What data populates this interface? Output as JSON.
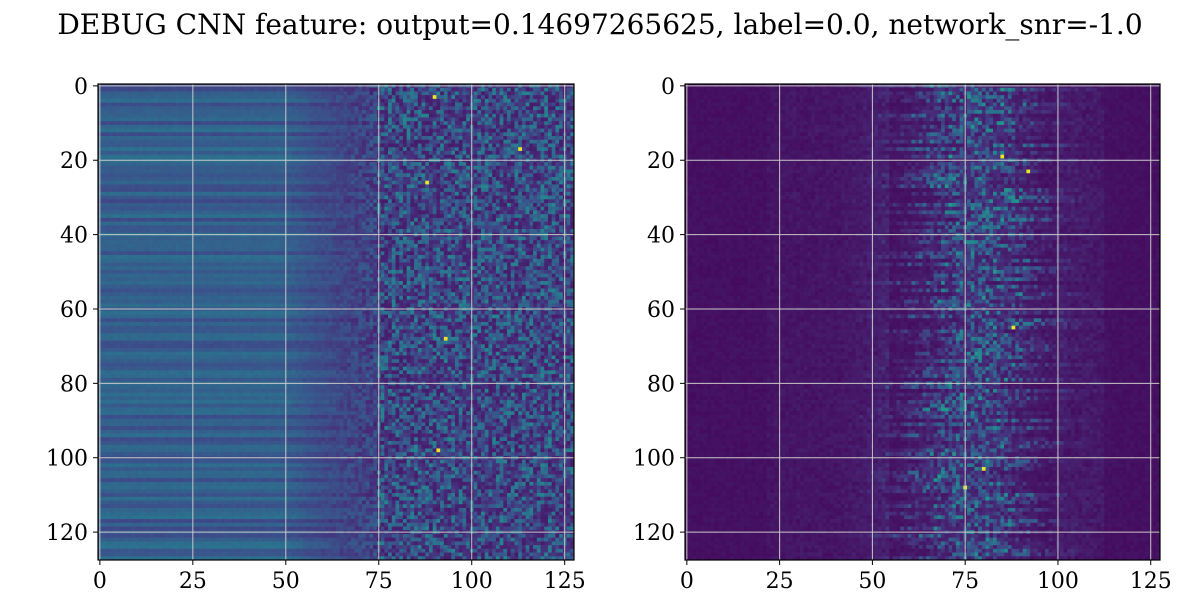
{
  "figure": {
    "title": "DEBUG CNN feature: output=0.14697265625, label=0.0, network_snr=-1.0"
  },
  "chart_data": [
    {
      "type": "heatmap",
      "title": "",
      "xlabel": "",
      "ylabel": "",
      "colormap": "viridis",
      "grid": true,
      "xlim": [
        -0.5,
        127.5
      ],
      "ylim": [
        127.5,
        -0.5
      ],
      "x_ticks": [
        0,
        25,
        50,
        75,
        100,
        125
      ],
      "y_ticks": [
        0,
        20,
        40,
        60,
        80,
        100,
        120
      ],
      "x_tick_labels": [
        "0",
        "25",
        "50",
        "75",
        "100",
        "125"
      ],
      "y_tick_labels": [
        "0",
        "20",
        "40",
        "60",
        "80",
        "100",
        "120"
      ],
      "matrix_shape": [
        128,
        128
      ],
      "value_range": [
        0,
        1
      ],
      "description_bands": [
        {
          "x_range": [
            0,
            50
          ],
          "row_profile_mean": 0.3,
          "row_profile_spread": 0.07
        },
        {
          "x_range": [
            50,
            75
          ],
          "mean_start": 0.28,
          "mean_end": 0.12
        },
        {
          "x_range": [
            75,
            127
          ],
          "noise_mean": 0.22,
          "noise_spread": 0.16,
          "hot_spots": [
            [
              90,
              3
            ],
            [
              113,
              17
            ],
            [
              91,
              98
            ],
            [
              93,
              68
            ],
            [
              88,
              26
            ]
          ]
        }
      ]
    },
    {
      "type": "heatmap",
      "title": "",
      "xlabel": "",
      "ylabel": "",
      "colormap": "viridis",
      "grid": true,
      "xlim": [
        -0.5,
        127.5
      ],
      "ylim": [
        127.5,
        -0.5
      ],
      "x_ticks": [
        0,
        25,
        50,
        75,
        100,
        125
      ],
      "y_ticks": [
        0,
        20,
        40,
        60,
        80,
        100,
        120
      ],
      "x_tick_labels": [
        "0",
        "25",
        "50",
        "75",
        "100",
        "125"
      ],
      "y_tick_labels": [
        "0",
        "20",
        "40",
        "60",
        "80",
        "100",
        "120"
      ],
      "matrix_shape": [
        128,
        128
      ],
      "value_range": [
        0,
        1
      ],
      "description_bands": [
        {
          "x_range": [
            0,
            22
          ],
          "level": 0.04
        },
        {
          "x_range": [
            22,
            55
          ],
          "level": 0.06
        },
        {
          "x_range": [
            55,
            110
          ],
          "activity_center": 78,
          "activity_width": 14,
          "noise_mean": 0.22
        },
        {
          "x_range": [
            110,
            127
          ],
          "level": 0.07
        }
      ],
      "hot_spots": [
        [
          88,
          65
        ],
        [
          80,
          103
        ],
        [
          75,
          108
        ],
        [
          85,
          19
        ],
        [
          92,
          23
        ]
      ]
    }
  ]
}
